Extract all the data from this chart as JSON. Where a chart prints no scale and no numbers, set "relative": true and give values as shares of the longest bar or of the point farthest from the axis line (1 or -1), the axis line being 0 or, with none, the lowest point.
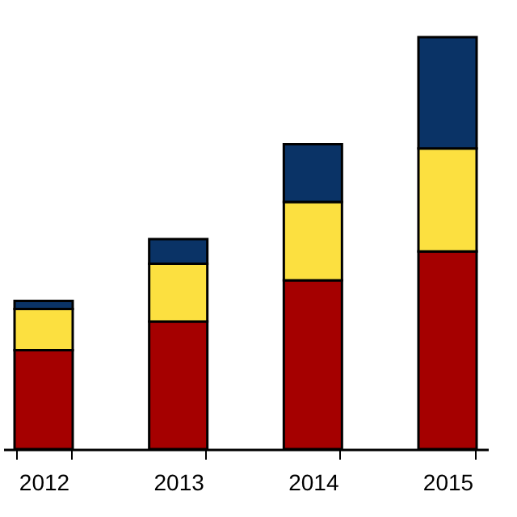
{
  "chart_data": {
    "type": "bar",
    "stacked": true,
    "relative": true,
    "categories": [
      "2012",
      "2013",
      "2014",
      "2015"
    ],
    "series": [
      {
        "color": "#a50000",
        "values": [
          0.24,
          0.31,
          0.41,
          0.48
        ]
      },
      {
        "color": "#fce040",
        "values": [
          0.1,
          0.14,
          0.19,
          0.25
        ]
      },
      {
        "color": "#0a3366",
        "values": [
          0.02,
          0.06,
          0.14,
          0.27
        ]
      }
    ],
    "grid": false,
    "legend": false
  }
}
